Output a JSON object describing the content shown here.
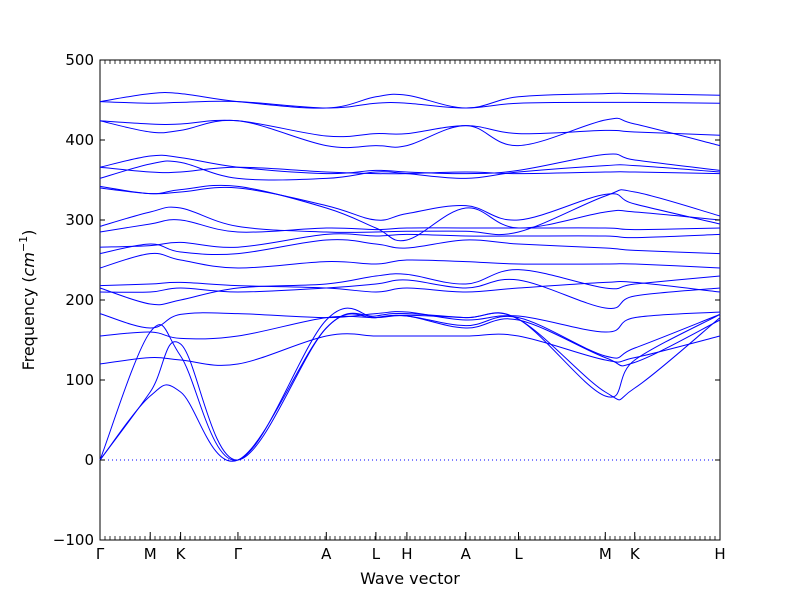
{
  "chart_data": {
    "type": "line",
    "title": "",
    "xlabel": "Wave vector",
    "ylabel_text": "Frequency (",
    "ylabel_unit_base": "cm",
    "ylabel_unit_exp": "−1",
    "ylabel_close": ")",
    "ylim": [
      -100,
      500
    ],
    "yticks": [
      -100,
      0,
      100,
      200,
      300,
      400,
      500
    ],
    "x_range": [
      0,
      20
    ],
    "kpoints": [
      {
        "label": "Γ",
        "x": 0
      },
      {
        "label": "M",
        "x": 1.62
      },
      {
        "label": "K",
        "x": 2.6
      },
      {
        "label": "Γ",
        "x": 4.45
      },
      {
        "label": "A",
        "x": 7.3
      },
      {
        "label": "L",
        "x": 8.9
      },
      {
        "label": "H",
        "x": 9.9
      },
      {
        "label": "A",
        "x": 11.8
      },
      {
        "label": "L",
        "x": 13.5
      },
      {
        "label": "M",
        "x": 16.3
      },
      {
        "label": "K",
        "x": 17.25
      },
      {
        "label": "H",
        "x": 20
      }
    ],
    "zero_line": true,
    "line_color": "#0000ff",
    "grid": false,
    "legend": "none",
    "series": [
      {
        "x": [
          0,
          1.62,
          2.6,
          4.45,
          7.3,
          8.9,
          9.9,
          11.8,
          13.5,
          16.3,
          17.25,
          20
        ],
        "y": [
          0,
          80,
          85,
          0,
          165,
          178,
          181,
          178,
          176,
          85,
          90,
          178
        ]
      },
      {
        "x": [
          0,
          1.62,
          2.6,
          4.45,
          7.3,
          8.9,
          9.9,
          11.8,
          13.5,
          16.3,
          17.25,
          20
        ],
        "y": [
          0,
          85,
          145,
          0,
          165,
          180,
          183,
          178,
          176,
          80,
          125,
          182
        ]
      },
      {
        "x": [
          0,
          1.62,
          2.6,
          4.45,
          7.3,
          8.9,
          9.9,
          11.8,
          13.5,
          16.3,
          17.25,
          20
        ],
        "y": [
          0,
          160,
          130,
          0,
          175,
          178,
          180,
          165,
          175,
          128,
          122,
          175
        ]
      },
      {
        "x": [
          0,
          1.62,
          2.6,
          4.45,
          7.3,
          8.9,
          9.9,
          11.8,
          13.5,
          16.3,
          17.25,
          20
        ],
        "y": [
          120,
          128,
          125,
          120,
          155,
          155,
          155,
          155,
          155,
          125,
          128,
          155
        ]
      },
      {
        "x": [
          0,
          1.62,
          2.6,
          4.45,
          7.3,
          8.9,
          9.9,
          11.8,
          13.5,
          16.3,
          17.25,
          20
        ],
        "y": [
          155,
          160,
          152,
          155,
          178,
          178,
          180,
          168,
          178,
          130,
          140,
          182
        ]
      },
      {
        "x": [
          0,
          1.62,
          2.6,
          4.45,
          7.3,
          8.9,
          9.9,
          11.8,
          13.5,
          16.3,
          17.25,
          20
        ],
        "y": [
          183,
          165,
          182,
          183,
          178,
          183,
          185,
          175,
          180,
          160,
          178,
          185
        ]
      },
      {
        "x": [
          0,
          1.62,
          2.6,
          4.45,
          7.3,
          8.9,
          9.9,
          11.8,
          13.5,
          16.3,
          17.25,
          20
        ],
        "y": [
          210,
          210,
          215,
          210,
          215,
          220,
          225,
          215,
          225,
          190,
          205,
          215
        ]
      },
      {
        "x": [
          0,
          1.62,
          2.6,
          4.45,
          7.3,
          8.9,
          9.9,
          11.8,
          13.5,
          16.3,
          17.25,
          20
        ],
        "y": [
          215,
          195,
          200,
          215,
          220,
          230,
          232,
          220,
          238,
          215,
          220,
          230
        ]
      },
      {
        "x": [
          0,
          1.62,
          2.6,
          4.45,
          7.3,
          8.9,
          9.9,
          11.8,
          13.5,
          16.3,
          17.25,
          20
        ],
        "y": [
          218,
          220,
          222,
          218,
          215,
          210,
          215,
          210,
          215,
          222,
          222,
          210
        ]
      },
      {
        "x": [
          0,
          1.62,
          2.6,
          4.45,
          7.3,
          8.9,
          9.9,
          11.8,
          13.5,
          16.3,
          17.25,
          20
        ],
        "y": [
          240,
          258,
          250,
          240,
          248,
          245,
          250,
          248,
          245,
          245,
          245,
          240
        ]
      },
      {
        "x": [
          0,
          1.62,
          2.6,
          4.45,
          7.3,
          8.9,
          9.9,
          11.8,
          13.5,
          16.3,
          17.25,
          20
        ],
        "y": [
          258,
          270,
          260,
          258,
          275,
          270,
          265,
          275,
          270,
          265,
          262,
          258
        ]
      },
      {
        "x": [
          0,
          1.62,
          2.6,
          4.45,
          7.3,
          8.9,
          9.9,
          11.8,
          13.5,
          16.3,
          17.25,
          20
        ],
        "y": [
          266,
          268,
          272,
          266,
          282,
          280,
          282,
          280,
          280,
          280,
          278,
          282
        ]
      },
      {
        "x": [
          0,
          1.62,
          2.6,
          4.45,
          7.3,
          8.9,
          9.9,
          11.8,
          13.5,
          16.3,
          17.25,
          20
        ],
        "y": [
          285,
          295,
          300,
          285,
          290,
          288,
          290,
          290,
          290,
          290,
          288,
          290
        ]
      },
      {
        "x": [
          0,
          1.62,
          2.6,
          4.45,
          7.3,
          8.9,
          9.9,
          11.8,
          13.5,
          16.3,
          17.25,
          20
        ],
        "y": [
          292,
          310,
          315,
          292,
          285,
          285,
          286,
          286,
          285,
          330,
          335,
          305
        ]
      },
      {
        "x": [
          0,
          1.62,
          2.6,
          4.45,
          7.3,
          8.9,
          9.9,
          11.8,
          13.5,
          16.3,
          17.25,
          20
        ],
        "y": [
          340,
          333,
          335,
          340,
          318,
          300,
          308,
          318,
          300,
          332,
          320,
          295
        ]
      },
      {
        "x": [
          0,
          1.62,
          2.6,
          4.45,
          7.3,
          8.9,
          9.9,
          11.8,
          13.5,
          16.3,
          17.25,
          20
        ],
        "y": [
          342,
          333,
          338,
          342,
          315,
          290,
          275,
          315,
          290,
          310,
          310,
          300
        ]
      },
      {
        "x": [
          0,
          1.62,
          2.6,
          4.45,
          7.3,
          8.9,
          9.9,
          11.8,
          13.5,
          16.3,
          17.25,
          20
        ],
        "y": [
          352,
          370,
          372,
          352,
          352,
          360,
          358,
          352,
          360,
          368,
          368,
          360
        ]
      },
      {
        "x": [
          0,
          1.62,
          2.6,
          4.45,
          7.3,
          8.9,
          9.9,
          11.8,
          13.5,
          16.3,
          17.25,
          20
        ],
        "y": [
          366,
          380,
          378,
          366,
          358,
          362,
          360,
          358,
          362,
          382,
          375,
          362
        ]
      },
      {
        "x": [
          0,
          1.62,
          2.6,
          4.45,
          7.3,
          8.9,
          9.9,
          11.8,
          13.5,
          16.3,
          17.25,
          20
        ],
        "y": [
          366,
          360,
          360,
          366,
          360,
          358,
          358,
          360,
          358,
          360,
          360,
          358
        ]
      },
      {
        "x": [
          0,
          1.62,
          2.6,
          4.45,
          7.3,
          8.9,
          9.9,
          11.8,
          13.5,
          16.3,
          17.25,
          20
        ],
        "y": [
          424,
          410,
          412,
          424,
          393,
          393,
          393,
          418,
          393,
          425,
          420,
          393
        ]
      },
      {
        "x": [
          0,
          1.62,
          2.6,
          4.45,
          7.3,
          8.9,
          9.9,
          11.8,
          13.5,
          16.3,
          17.25,
          20
        ],
        "y": [
          424,
          420,
          420,
          424,
          405,
          408,
          408,
          418,
          408,
          412,
          410,
          406
        ]
      },
      {
        "x": [
          0,
          1.62,
          2.6,
          4.45,
          7.3,
          8.9,
          9.9,
          11.8,
          13.5,
          16.3,
          17.25,
          20
        ],
        "y": [
          448,
          446,
          447,
          448,
          440,
          446,
          446,
          440,
          446,
          447,
          447,
          446
        ]
      },
      {
        "x": [
          0,
          1.62,
          2.6,
          4.45,
          7.3,
          8.9,
          9.9,
          11.8,
          13.5,
          16.3,
          17.25,
          20
        ],
        "y": [
          448,
          458,
          458,
          448,
          440,
          454,
          456,
          440,
          454,
          458,
          458,
          456
        ]
      }
    ]
  }
}
